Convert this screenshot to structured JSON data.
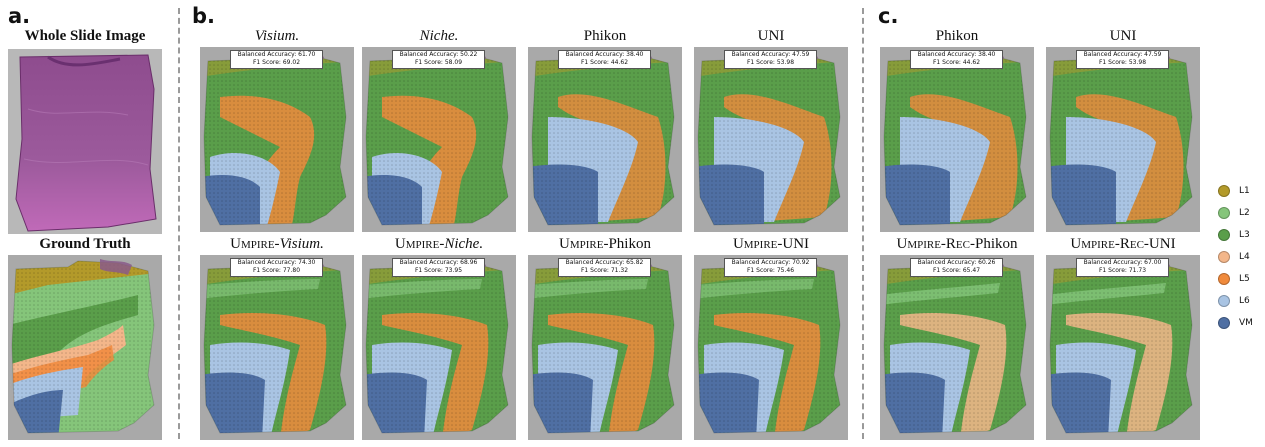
{
  "panels": {
    "a": {
      "letter": "a.",
      "top_title": "Whole Slide Image",
      "bottom_title": "Ground Truth"
    },
    "b": {
      "letter": "b."
    },
    "c": {
      "letter": "c."
    }
  },
  "colors": {
    "L1": "#b39a2a",
    "L2": "#85c57a",
    "L3": "#5a9e4a",
    "L4": "#f3b68a",
    "L5": "#f08a3c",
    "L6": "#a9c4e3",
    "VM": "#4f6fa3",
    "background": "#a9a9a9",
    "wsi": "#9a4a9a"
  },
  "tiles_b_top": [
    {
      "title_italic": "Visium.",
      "line1": "Balanced Accuracy: 61.70",
      "line2": "F1 Score: 69.02"
    },
    {
      "title_italic": "Niche.",
      "line1": "Balanced Accuracy: 50.22",
      "line2": "F1 Score: 58.09"
    },
    {
      "title": "Phikon",
      "line1": "Balanced Accuracy: 38.40",
      "line2": "F1 Score: 44.62"
    },
    {
      "title": "UNI",
      "line1": "Balanced Accuracy: 47.59",
      "line2": "F1 Score: 53.98"
    }
  ],
  "tiles_b_bottom": [
    {
      "prefix": "Umpire-",
      "suffix_italic": "Visium.",
      "line1": "Balanced Accuracy: 74.30",
      "line2": "F1 Score: 77.80"
    },
    {
      "prefix": "Umpire-",
      "suffix_italic": "Niche.",
      "line1": "Balanced Accuracy: 68.96",
      "line2": "F1 Score: 73.95"
    },
    {
      "prefix": "Umpire-",
      "suffix": "Phikon",
      "line1": "Balanced Accuracy: 65.82",
      "line2": "F1 Score: 71.32"
    },
    {
      "prefix": "Umpire-",
      "suffix": "UNI",
      "line1": "Balanced Accuracy: 70.92",
      "line2": "F1 Score: 75.46"
    }
  ],
  "tiles_c_top": [
    {
      "title": "Phikon",
      "line1": "Balanced Accuracy: 38.40",
      "line2": "F1 Score: 44.62"
    },
    {
      "title": "UNI",
      "line1": "Balanced Accuracy: 47.59",
      "line2": "F1 Score: 53.98"
    }
  ],
  "tiles_c_bottom": [
    {
      "prefix": "Umpire-Rec-",
      "suffix": "Phikon",
      "line1": "Balanced Accuracy: 60.26",
      "line2": "F1 Score: 65.47"
    },
    {
      "prefix": "Umpire-Rec-",
      "suffix": "UNI",
      "line1": "Balanced Accuracy: 67.00",
      "line2": "F1 Score: 71.73"
    }
  ],
  "legend": [
    "L1",
    "L2",
    "L3",
    "L4",
    "L5",
    "L6",
    "VM"
  ]
}
